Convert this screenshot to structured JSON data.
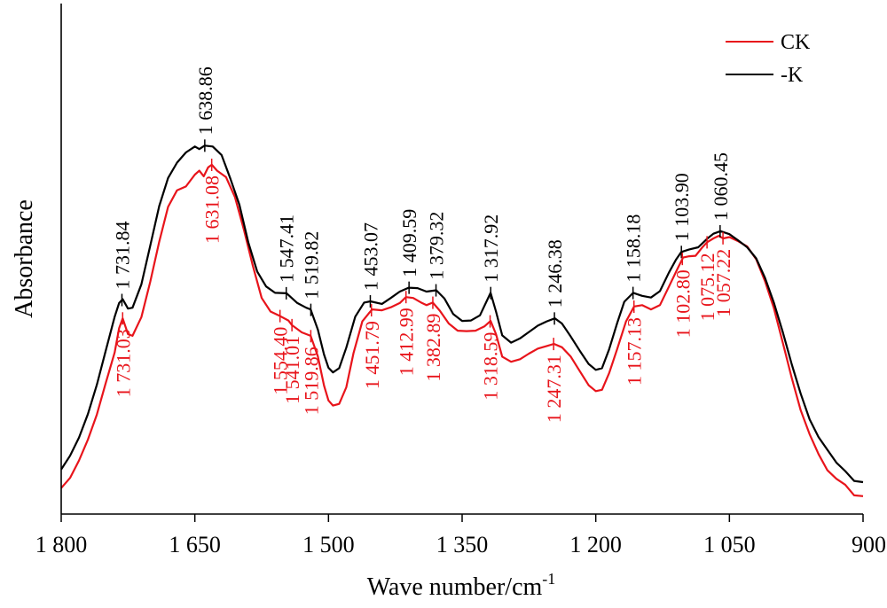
{
  "chart_data": {
    "type": "line",
    "xlabel": "Wave number/cm",
    "xlabel_superscript": "-1",
    "ylabel": "Absorbance",
    "xlim": [
      1800,
      900
    ],
    "x_reversed": true,
    "ylim": [
      0,
      1
    ],
    "xticks": [
      {
        "value": 1800,
        "label": "1 800"
      },
      {
        "value": 1650,
        "label": "1 650"
      },
      {
        "value": 1500,
        "label": "1 500"
      },
      {
        "value": 1350,
        "label": "1 350"
      },
      {
        "value": 1200,
        "label": "1 200"
      },
      {
        "value": 1050,
        "label": "1 050"
      },
      {
        "value": 900,
        "label": "900"
      }
    ],
    "legend_position": "top-right",
    "series": [
      {
        "name": "CK",
        "color": "#e8141b",
        "points": [
          [
            1800,
            0.061
          ],
          [
            1790,
            0.085
          ],
          [
            1780,
            0.126
          ],
          [
            1770,
            0.175
          ],
          [
            1760,
            0.234
          ],
          [
            1750,
            0.308
          ],
          [
            1740,
            0.38
          ],
          [
            1735,
            0.437
          ],
          [
            1731,
            0.46
          ],
          [
            1725,
            0.423
          ],
          [
            1720,
            0.419
          ],
          [
            1710,
            0.463
          ],
          [
            1700,
            0.546
          ],
          [
            1690,
            0.64
          ],
          [
            1680,
            0.722
          ],
          [
            1670,
            0.761
          ],
          [
            1660,
            0.77
          ],
          [
            1650,
            0.798
          ],
          [
            1645,
            0.807
          ],
          [
            1640,
            0.794
          ],
          [
            1635,
            0.815
          ],
          [
            1631,
            0.821
          ],
          [
            1625,
            0.807
          ],
          [
            1615,
            0.792
          ],
          [
            1605,
            0.745
          ],
          [
            1595,
            0.669
          ],
          [
            1585,
            0.584
          ],
          [
            1575,
            0.508
          ],
          [
            1565,
            0.476
          ],
          [
            1554,
            0.465
          ],
          [
            1545,
            0.455
          ],
          [
            1541,
            0.444
          ],
          [
            1530,
            0.427
          ],
          [
            1520,
            0.419
          ],
          [
            1512,
            0.371
          ],
          [
            1505,
            0.302
          ],
          [
            1500,
            0.267
          ],
          [
            1495,
            0.255
          ],
          [
            1488,
            0.259
          ],
          [
            1480,
            0.298
          ],
          [
            1472,
            0.378
          ],
          [
            1462,
            0.453
          ],
          [
            1455,
            0.471
          ],
          [
            1451,
            0.481
          ],
          [
            1440,
            0.479
          ],
          [
            1430,
            0.486
          ],
          [
            1420,
            0.496
          ],
          [
            1413,
            0.51
          ],
          [
            1405,
            0.508
          ],
          [
            1395,
            0.496
          ],
          [
            1390,
            0.491
          ],
          [
            1383,
            0.497
          ],
          [
            1375,
            0.478
          ],
          [
            1365,
            0.448
          ],
          [
            1355,
            0.431
          ],
          [
            1345,
            0.43
          ],
          [
            1335,
            0.431
          ],
          [
            1325,
            0.441
          ],
          [
            1318,
            0.454
          ],
          [
            1312,
            0.423
          ],
          [
            1305,
            0.37
          ],
          [
            1295,
            0.358
          ],
          [
            1285,
            0.364
          ],
          [
            1275,
            0.377
          ],
          [
            1265,
            0.389
          ],
          [
            1255,
            0.395
          ],
          [
            1247,
            0.4
          ],
          [
            1238,
            0.392
          ],
          [
            1228,
            0.37
          ],
          [
            1218,
            0.336
          ],
          [
            1208,
            0.303
          ],
          [
            1200,
            0.289
          ],
          [
            1193,
            0.292
          ],
          [
            1185,
            0.331
          ],
          [
            1176,
            0.388
          ],
          [
            1166,
            0.453
          ],
          [
            1157,
            0.488
          ],
          [
            1148,
            0.491
          ],
          [
            1138,
            0.481
          ],
          [
            1128,
            0.491
          ],
          [
            1118,
            0.534
          ],
          [
            1108,
            0.578
          ],
          [
            1102,
            0.603
          ],
          [
            1095,
            0.606
          ],
          [
            1088,
            0.607
          ],
          [
            1080,
            0.628
          ],
          [
            1075,
            0.639
          ],
          [
            1068,
            0.648
          ],
          [
            1062,
            0.654
          ],
          [
            1057,
            0.648
          ],
          [
            1050,
            0.651
          ],
          [
            1040,
            0.641
          ],
          [
            1030,
            0.629
          ],
          [
            1020,
            0.599
          ],
          [
            1010,
            0.547
          ],
          [
            1000,
            0.483
          ],
          [
            990,
            0.402
          ],
          [
            980,
            0.32
          ],
          [
            970,
            0.244
          ],
          [
            960,
            0.188
          ],
          [
            950,
            0.141
          ],
          [
            940,
            0.103
          ],
          [
            930,
            0.083
          ],
          [
            920,
            0.069
          ],
          [
            910,
            0.044
          ],
          [
            900,
            0.042
          ]
        ]
      },
      {
        "name": "-K",
        "color": "#000000",
        "points": [
          [
            1800,
            0.105
          ],
          [
            1790,
            0.137
          ],
          [
            1780,
            0.18
          ],
          [
            1770,
            0.235
          ],
          [
            1760,
            0.304
          ],
          [
            1750,
            0.384
          ],
          [
            1740,
            0.464
          ],
          [
            1735,
            0.496
          ],
          [
            1731,
            0.505
          ],
          [
            1725,
            0.483
          ],
          [
            1720,
            0.485
          ],
          [
            1710,
            0.54
          ],
          [
            1700,
            0.631
          ],
          [
            1690,
            0.724
          ],
          [
            1680,
            0.79
          ],
          [
            1670,
            0.826
          ],
          [
            1660,
            0.85
          ],
          [
            1650,
            0.864
          ],
          [
            1645,
            0.858
          ],
          [
            1639,
            0.866
          ],
          [
            1630,
            0.864
          ],
          [
            1620,
            0.844
          ],
          [
            1610,
            0.788
          ],
          [
            1600,
            0.727
          ],
          [
            1590,
            0.639
          ],
          [
            1580,
            0.57
          ],
          [
            1570,
            0.535
          ],
          [
            1560,
            0.52
          ],
          [
            1547,
            0.519
          ],
          [
            1535,
            0.496
          ],
          [
            1525,
            0.485
          ],
          [
            1520,
            0.481
          ],
          [
            1512,
            0.434
          ],
          [
            1505,
            0.375
          ],
          [
            1500,
            0.344
          ],
          [
            1495,
            0.333
          ],
          [
            1488,
            0.343
          ],
          [
            1480,
            0.391
          ],
          [
            1470,
            0.464
          ],
          [
            1460,
            0.497
          ],
          [
            1453,
            0.5
          ],
          [
            1440,
            0.494
          ],
          [
            1430,
            0.508
          ],
          [
            1420,
            0.523
          ],
          [
            1410,
            0.532
          ],
          [
            1400,
            0.531
          ],
          [
            1390,
            0.523
          ],
          [
            1379,
            0.526
          ],
          [
            1370,
            0.507
          ],
          [
            1360,
            0.47
          ],
          [
            1350,
            0.454
          ],
          [
            1340,
            0.455
          ],
          [
            1330,
            0.467
          ],
          [
            1318,
            0.52
          ],
          [
            1312,
            0.476
          ],
          [
            1305,
            0.42
          ],
          [
            1295,
            0.403
          ],
          [
            1285,
            0.413
          ],
          [
            1275,
            0.428
          ],
          [
            1265,
            0.443
          ],
          [
            1255,
            0.453
          ],
          [
            1246,
            0.46
          ],
          [
            1238,
            0.448
          ],
          [
            1228,
            0.417
          ],
          [
            1218,
            0.384
          ],
          [
            1208,
            0.353
          ],
          [
            1200,
            0.339
          ],
          [
            1193,
            0.343
          ],
          [
            1185,
            0.387
          ],
          [
            1176,
            0.449
          ],
          [
            1168,
            0.499
          ],
          [
            1158,
            0.52
          ],
          [
            1148,
            0.513
          ],
          [
            1138,
            0.509
          ],
          [
            1128,
            0.524
          ],
          [
            1118,
            0.567
          ],
          [
            1110,
            0.598
          ],
          [
            1104,
            0.616
          ],
          [
            1095,
            0.622
          ],
          [
            1085,
            0.627
          ],
          [
            1075,
            0.647
          ],
          [
            1068,
            0.659
          ],
          [
            1060,
            0.665
          ],
          [
            1050,
            0.658
          ],
          [
            1040,
            0.643
          ],
          [
            1030,
            0.627
          ],
          [
            1020,
            0.601
          ],
          [
            1010,
            0.555
          ],
          [
            1000,
            0.496
          ],
          [
            990,
            0.427
          ],
          [
            980,
            0.352
          ],
          [
            970,
            0.283
          ],
          [
            960,
            0.223
          ],
          [
            950,
            0.181
          ],
          [
            940,
            0.151
          ],
          [
            930,
            0.121
          ],
          [
            920,
            0.101
          ],
          [
            910,
            0.078
          ],
          [
            900,
            0.075
          ]
        ]
      }
    ],
    "annotations_black": [
      {
        "x": 1731.84,
        "label": "1 731.84"
      },
      {
        "x": 1638.86,
        "label": "1 638.86"
      },
      {
        "x": 1547.41,
        "label": "1 547.41"
      },
      {
        "x": 1519.82,
        "label": "1 519.82"
      },
      {
        "x": 1453.07,
        "label": "1 453.07"
      },
      {
        "x": 1409.59,
        "label": "1 409.59"
      },
      {
        "x": 1379.32,
        "label": "1 379.32"
      },
      {
        "x": 1317.92,
        "label": "1 317.92"
      },
      {
        "x": 1246.38,
        "label": "1 246.38"
      },
      {
        "x": 1158.18,
        "label": "1 158.18"
      },
      {
        "x": 1103.9,
        "label": "1 103.90"
      },
      {
        "x": 1060.45,
        "label": "1 060.45"
      }
    ],
    "annotations_red": [
      {
        "x": 1731.03,
        "label": "1 731.03"
      },
      {
        "x": 1631.08,
        "label": "1 631.08"
      },
      {
        "x": 1554.4,
        "label": "1 554.40"
      },
      {
        "x": 1541.01,
        "label": "1 541.01"
      },
      {
        "x": 1519.86,
        "label": "1 519.86"
      },
      {
        "x": 1451.79,
        "label": "1 451.79"
      },
      {
        "x": 1412.99,
        "label": "1 412.99"
      },
      {
        "x": 1382.89,
        "label": "1 382.89"
      },
      {
        "x": 1318.59,
        "label": "1 318.59"
      },
      {
        "x": 1247.31,
        "label": "1 247.31"
      },
      {
        "x": 1157.13,
        "label": "1 157.13"
      },
      {
        "x": 1102.8,
        "label": "1 102.80"
      },
      {
        "x": 1075.12,
        "label": "1 075.12"
      },
      {
        "x": 1057.22,
        "label": "1 057.22"
      }
    ]
  }
}
